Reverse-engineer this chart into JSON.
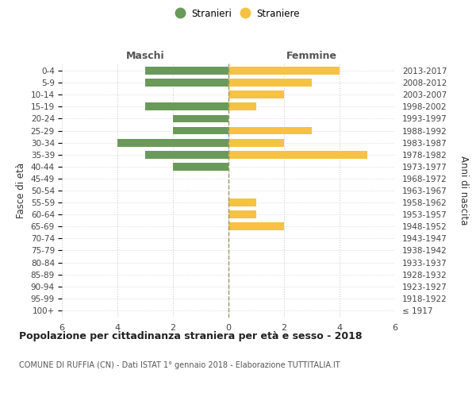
{
  "age_groups": [
    "100+",
    "95-99",
    "90-94",
    "85-89",
    "80-84",
    "75-79",
    "70-74",
    "65-69",
    "60-64",
    "55-59",
    "50-54",
    "45-49",
    "40-44",
    "35-39",
    "30-34",
    "25-29",
    "20-24",
    "15-19",
    "10-14",
    "5-9",
    "0-4"
  ],
  "birth_years": [
    "≤ 1917",
    "1918-1922",
    "1923-1927",
    "1928-1932",
    "1933-1937",
    "1938-1942",
    "1943-1947",
    "1948-1952",
    "1953-1957",
    "1958-1962",
    "1963-1967",
    "1968-1972",
    "1973-1977",
    "1978-1982",
    "1983-1987",
    "1988-1992",
    "1993-1997",
    "1998-2002",
    "2003-2007",
    "2008-2012",
    "2013-2017"
  ],
  "males": [
    0,
    0,
    0,
    0,
    0,
    0,
    0,
    0,
    0,
    0,
    0,
    0,
    2,
    3,
    4,
    2,
    2,
    3,
    0,
    3,
    3
  ],
  "females": [
    0,
    0,
    0,
    0,
    0,
    0,
    0,
    2,
    1,
    1,
    0,
    0,
    0,
    5,
    2,
    3,
    0,
    1,
    2,
    3,
    4
  ],
  "male_color": "#6a9a5a",
  "female_color": "#f5c242",
  "background_color": "#ffffff",
  "grid_color": "#cccccc",
  "center_line_color": "#999966",
  "title": "Popolazione per cittadinanza straniera per età e sesso - 2018",
  "subtitle": "COMUNE DI RUFFIA (CN) - Dati ISTAT 1° gennaio 2018 - Elaborazione TUTTITALIA.IT",
  "xlabel_left": "Maschi",
  "xlabel_right": "Femmine",
  "ylabel_left": "Fasce di età",
  "ylabel_right": "Anni di nascita",
  "legend_male": "Stranieri",
  "legend_female": "Straniere",
  "xlim": 6,
  "bar_height": 0.65
}
